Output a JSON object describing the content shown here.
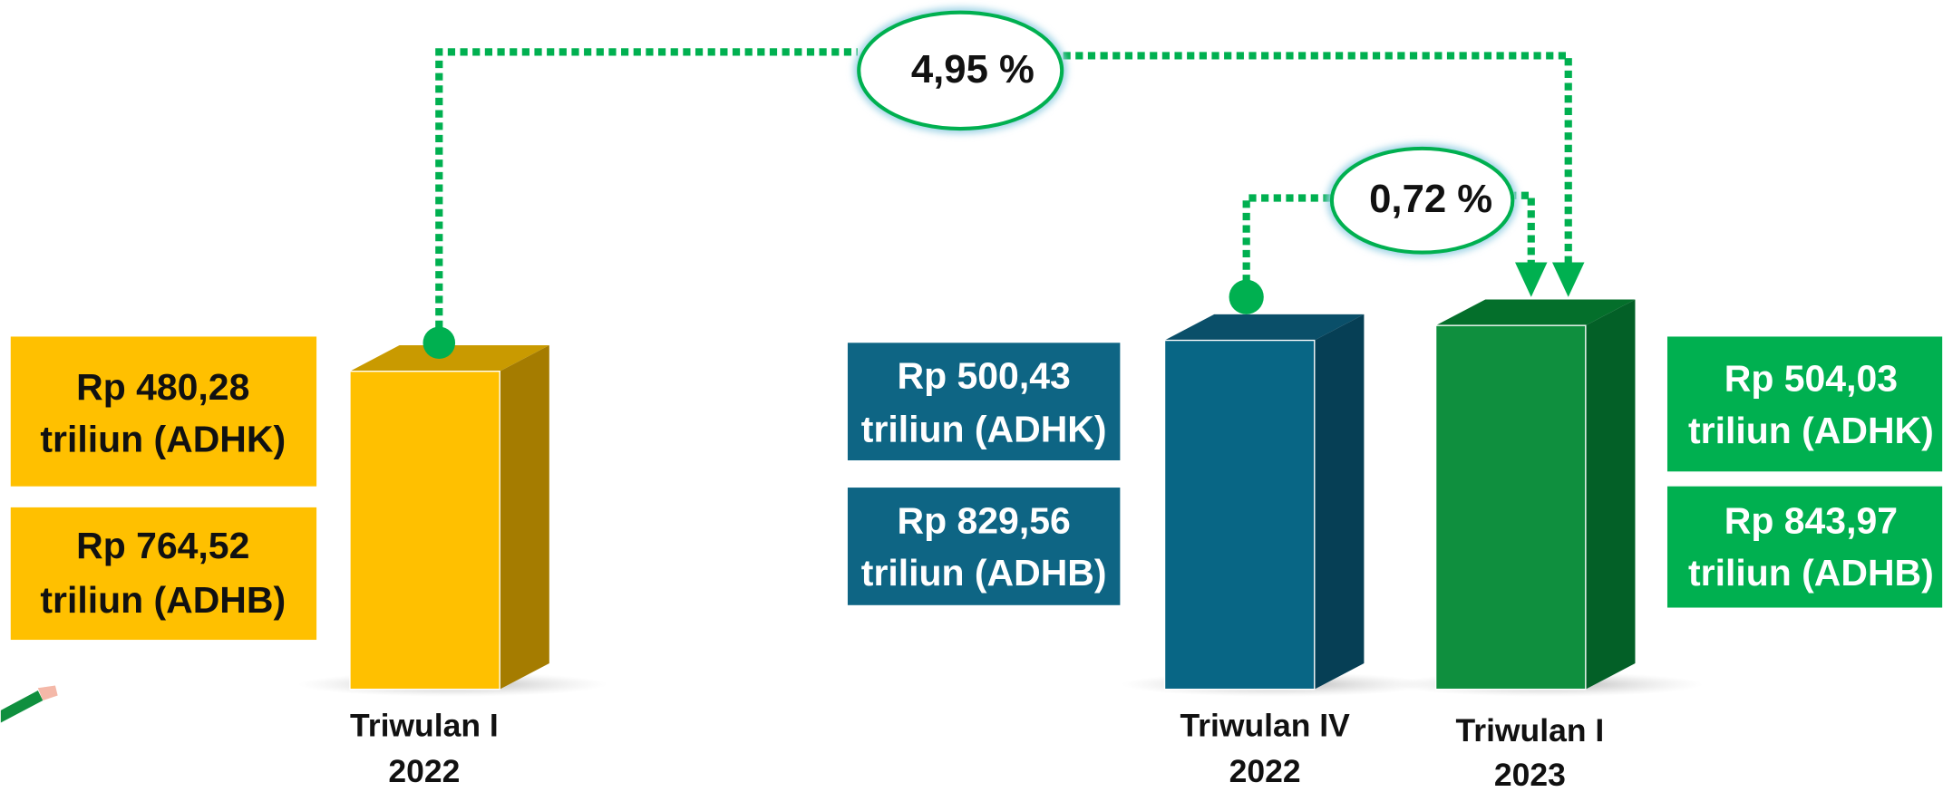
{
  "growth": [
    {
      "label": "4,95 %"
    },
    {
      "label": "0,72 %"
    }
  ],
  "groups": [
    {
      "period": [
        "Triwulan I",
        "2022"
      ],
      "adhk": [
        "Rp 480,28",
        "triliun (ADHK)"
      ],
      "adhb": [
        "Rp 764,52",
        "triliun (ADHB)"
      ]
    },
    {
      "period": [
        "Triwulan IV",
        "2022"
      ],
      "adhk": [
        "Rp 500,43",
        "triliun (ADHK)"
      ],
      "adhb": [
        "Rp 829,56",
        "triliun (ADHB)"
      ]
    },
    {
      "period": [
        "Triwulan I",
        "2023"
      ],
      "adhk": [
        "Rp 504,03",
        "triliun (ADHK)"
      ],
      "adhb": [
        "Rp 843,97",
        "triliun (ADHB)"
      ]
    }
  ]
}
